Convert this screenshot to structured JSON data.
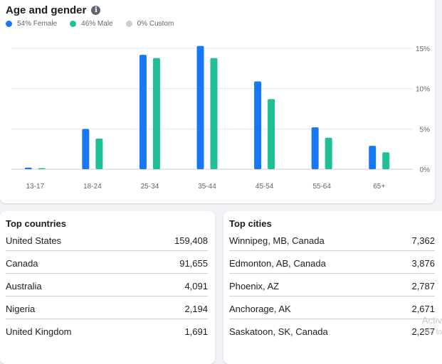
{
  "age_gender": {
    "title": "Age and gender",
    "info_icon": "info-icon",
    "legend": [
      {
        "label": "54% Female",
        "color": "#1877f2"
      },
      {
        "label": "46% Male",
        "color": "#1fbf97"
      },
      {
        "label": "0% Custom",
        "color": "#ccd0d5"
      }
    ]
  },
  "chart_data": {
    "type": "bar",
    "categories": [
      "13-17",
      "18-24",
      "25-34",
      "35-44",
      "45-54",
      "55-64",
      "65+"
    ],
    "series": [
      {
        "name": "Female",
        "color": "#1877f2",
        "values": [
          0.2,
          5.0,
          14.2,
          15.3,
          10.9,
          5.2,
          2.9
        ]
      },
      {
        "name": "Male",
        "color": "#1fbf97",
        "values": [
          0.1,
          3.8,
          13.8,
          13.8,
          8.7,
          3.9,
          2.1
        ]
      }
    ],
    "y_ticks": [
      "0%",
      "5%",
      "10%",
      "15%"
    ],
    "ylim": [
      0,
      15
    ],
    "grid": true,
    "legend_position": "top-left"
  },
  "top_countries": {
    "title": "Top countries",
    "rows": [
      {
        "name": "United States",
        "value": "159,408"
      },
      {
        "name": "Canada",
        "value": "91,655"
      },
      {
        "name": "Australia",
        "value": "4,091"
      },
      {
        "name": "Nigeria",
        "value": "2,194"
      },
      {
        "name": "United Kingdom",
        "value": "1,691"
      }
    ]
  },
  "top_cities": {
    "title": "Top cities",
    "rows": [
      {
        "name": "Winnipeg, MB, Canada",
        "value": "7,362"
      },
      {
        "name": "Edmonton, AB, Canada",
        "value": "3,876"
      },
      {
        "name": "Phoenix, AZ",
        "value": "2,787"
      },
      {
        "name": "Anchorage, AK",
        "value": "2,671"
      },
      {
        "name": "Saskatoon, SK, Canada",
        "value": "2,257"
      }
    ]
  },
  "watermark": {
    "line1": "Activ",
    "line2": "Go to"
  }
}
